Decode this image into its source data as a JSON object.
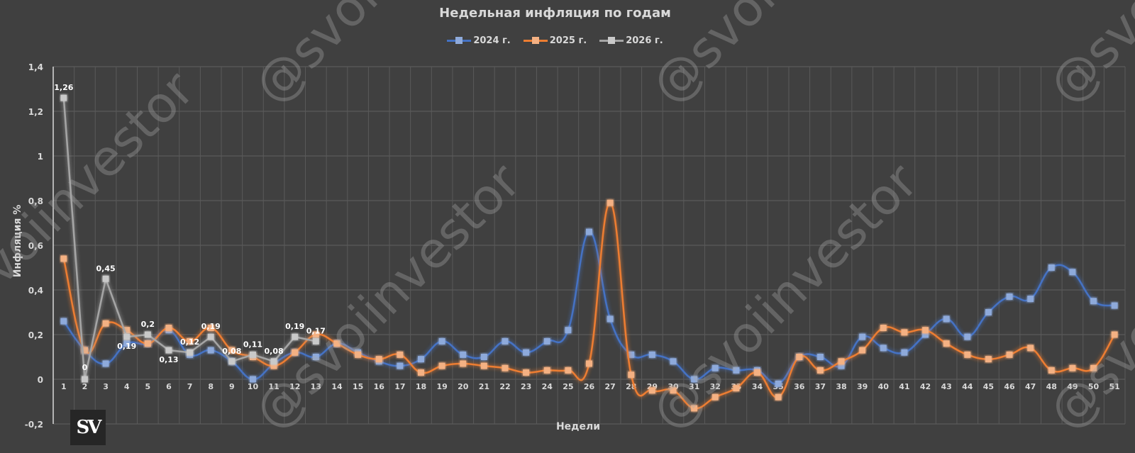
{
  "header": {
    "title": "Недельная инфляция по годам"
  },
  "axes": {
    "ylabel": "Инфляция %",
    "xlabel": "Недели"
  },
  "legend": [
    {
      "label": "2024 г.",
      "color": "#4472c4",
      "marker": "#8eaadb"
    },
    {
      "label": "2025 г.",
      "color": "#ed7d31",
      "marker": "#f4b183"
    },
    {
      "label": "2026 г.",
      "color": "#a5a5a5",
      "marker": "#c9c9c9"
    }
  ],
  "logo": {
    "text": "SV"
  },
  "watermark": {
    "text": "@svoiinvestor"
  },
  "chart_data": {
    "type": "line",
    "title": "Недельная инфляция по годам",
    "xlabel": "Недели",
    "ylabel": "Инфляция %",
    "ylim": [
      -0.2,
      1.4
    ],
    "yticks": [
      "-0,2",
      "0",
      "0,2",
      "0,4",
      "0,6",
      "0,8",
      "1",
      "1,2",
      "1,4"
    ],
    "grid": true,
    "legend_position": "top",
    "categories": [
      1,
      2,
      3,
      4,
      5,
      6,
      7,
      8,
      9,
      10,
      11,
      12,
      13,
      14,
      15,
      16,
      17,
      18,
      19,
      20,
      21,
      22,
      23,
      24,
      25,
      26,
      27,
      28,
      29,
      30,
      31,
      32,
      33,
      34,
      35,
      36,
      37,
      38,
      39,
      40,
      41,
      42,
      43,
      44,
      45,
      46,
      47,
      48,
      49,
      50,
      51
    ],
    "series": [
      {
        "name": "2024 г.",
        "smooth": true,
        "values": [
          0.26,
          0.13,
          0.07,
          0.16,
          0.16,
          0.22,
          0.11,
          0.13,
          0.08,
          0,
          0.07,
          0.12,
          0.1,
          0.16,
          0.12,
          0.08,
          0.06,
          0.09,
          0.17,
          0.11,
          0.1,
          0.17,
          0.12,
          0.17,
          0.22,
          0.66,
          0.27,
          0.11,
          0.11,
          0.08,
          0,
          0.05,
          0.04,
          0.04,
          -0.02,
          0.1,
          0.1,
          0.06,
          0.19,
          0.14,
          0.12,
          0.2,
          0.27,
          0.19,
          0.3,
          0.37,
          0.36,
          0.5,
          0.48,
          0.35,
          0.33
        ]
      },
      {
        "name": "2025 г.",
        "smooth": true,
        "values": [
          0.54,
          0.13,
          0.25,
          0.22,
          0.16,
          0.23,
          0.17,
          0.23,
          0.13,
          0.1,
          0.06,
          0.12,
          0.2,
          0.16,
          0.11,
          0.09,
          0.11,
          0.03,
          0.06,
          0.07,
          0.06,
          0.05,
          0.03,
          0.04,
          0.04,
          0.07,
          0.79,
          0.02,
          -0.05,
          -0.05,
          -0.13,
          -0.08,
          -0.04,
          0.03,
          -0.08,
          0.1,
          0.04,
          0.08,
          0.13,
          0.23,
          0.21,
          0.22,
          0.16,
          0.11,
          0.09,
          0.11,
          0.14,
          0.04,
          0.05,
          0.05,
          0.2
        ]
      },
      {
        "name": "2026 г.",
        "smooth": false,
        "values": [
          1.26,
          0,
          0.45,
          0.19,
          0.2,
          0.13,
          0.12,
          0.19,
          0.08,
          0.11,
          0.08,
          0.19,
          0.17
        ],
        "data_labels": [
          "1,26",
          "0",
          "0,45",
          "0,19",
          "0,2",
          "0,13",
          "0,12",
          "0,19",
          "0,08",
          "0,11",
          "0,08",
          "0,19",
          "0,17"
        ]
      }
    ]
  }
}
